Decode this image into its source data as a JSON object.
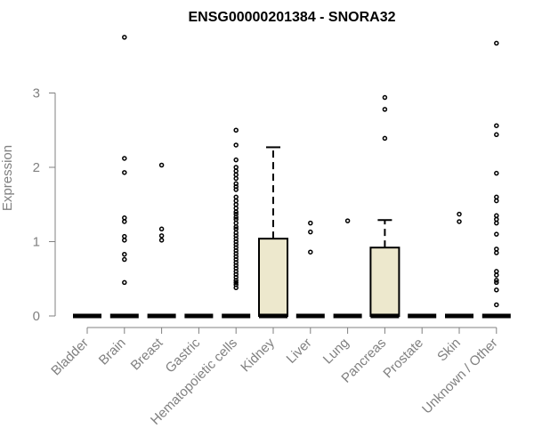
{
  "chart_data": {
    "type": "box",
    "title": "ENSG00000201384 - SNORA32",
    "ylabel": "Expression",
    "xlabel": "",
    "ylim": [
      0,
      3.8
    ],
    "yticks": [
      0,
      1,
      2,
      3
    ],
    "categories": [
      "Bladder",
      "Brain",
      "Breast",
      "Gastric",
      "Hematopoietic cells",
      "Kidney",
      "Liver",
      "Lung",
      "Pancreas",
      "Prostate",
      "Skin",
      "Unknown / Other"
    ],
    "box_fill": "#ede8cd",
    "boxes": [
      {
        "category": "Bladder",
        "q1": 0,
        "median": 0,
        "q3": 0,
        "whisker_low": 0,
        "whisker_high": 0,
        "outliers": []
      },
      {
        "category": "Brain",
        "q1": 0,
        "median": 0,
        "q3": 0,
        "whisker_low": 0,
        "whisker_high": 0,
        "outliers": [
          3.75,
          2.12,
          1.93,
          1.32,
          1.27,
          1.07,
          1.02,
          0.83,
          0.76,
          0.45
        ]
      },
      {
        "category": "Breast",
        "q1": 0,
        "median": 0,
        "q3": 0,
        "whisker_low": 0,
        "whisker_high": 0,
        "outliers": [
          2.03,
          1.17,
          1.08,
          1.02
        ]
      },
      {
        "category": "Gastric",
        "q1": 0,
        "median": 0,
        "q3": 0,
        "whisker_low": 0,
        "whisker_high": 0,
        "outliers": []
      },
      {
        "category": "Hematopoietic cells",
        "q1": 0,
        "median": 0,
        "q3": 0,
        "whisker_low": 0,
        "whisker_high": 0,
        "outliers": [
          2.5,
          2.3,
          2.1,
          2.0,
          1.95,
          1.9,
          1.85,
          1.78,
          1.74,
          1.7,
          1.6,
          1.55,
          1.5,
          1.45,
          1.4,
          1.37,
          1.33,
          1.3,
          1.25,
          1.2,
          1.17,
          1.12,
          1.08,
          1.04,
          1.0,
          0.96,
          0.92,
          0.88,
          0.84,
          0.8,
          0.76,
          0.72,
          0.68,
          0.64,
          0.6,
          0.56,
          0.52,
          0.48,
          0.45,
          0.42,
          0.38
        ]
      },
      {
        "category": "Kidney",
        "q1": 0,
        "median": 0,
        "q3": 1.04,
        "whisker_low": 0,
        "whisker_high": 2.27,
        "outliers": []
      },
      {
        "category": "Liver",
        "q1": 0,
        "median": 0,
        "q3": 0,
        "whisker_low": 0,
        "whisker_high": 0,
        "outliers": [
          1.25,
          1.13,
          0.86
        ]
      },
      {
        "category": "Lung",
        "q1": 0,
        "median": 0,
        "q3": 0,
        "whisker_low": 0,
        "whisker_high": 0,
        "outliers": [
          1.28
        ]
      },
      {
        "category": "Pancreas",
        "q1": 0,
        "median": 0,
        "q3": 0.92,
        "whisker_low": 0,
        "whisker_high": 1.29,
        "outliers": [
          2.94,
          2.78,
          2.39
        ]
      },
      {
        "category": "Prostate",
        "q1": 0,
        "median": 0,
        "q3": 0,
        "whisker_low": 0,
        "whisker_high": 0,
        "outliers": []
      },
      {
        "category": "Skin",
        "q1": 0,
        "median": 0,
        "q3": 0,
        "whisker_low": 0,
        "whisker_high": 0,
        "outliers": [
          1.37,
          1.27
        ]
      },
      {
        "category": "Unknown / Other",
        "q1": 0,
        "median": 0,
        "q3": 0,
        "whisker_low": 0,
        "whisker_high": 0,
        "outliers": [
          3.67,
          2.56,
          2.44,
          1.92,
          1.6,
          1.55,
          1.35,
          1.3,
          1.25,
          1.1,
          0.9,
          0.85,
          0.6,
          0.55,
          0.48,
          0.45,
          0.35,
          0.15
        ]
      }
    ]
  }
}
